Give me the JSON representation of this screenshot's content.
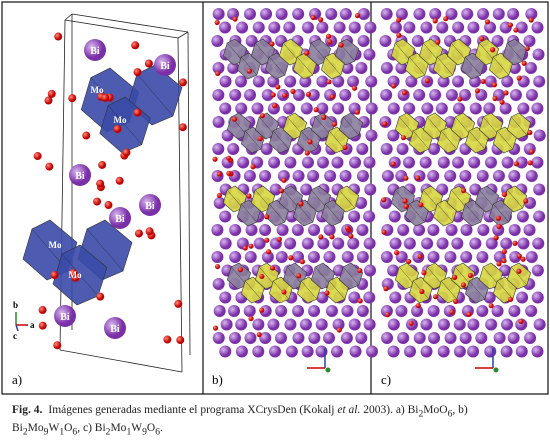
{
  "panels": [
    {
      "label": "a)",
      "atom_labels": [
        "Bi",
        "Bi",
        "Bi",
        "Bi",
        "Bi",
        "Bi",
        "Bi",
        "Mo",
        "Mo",
        "Mo",
        "Mo"
      ],
      "axes": [
        "b",
        "a",
        "c"
      ]
    },
    {
      "label": "b)"
    },
    {
      "label": "c)"
    }
  ],
  "caption": {
    "parts": [
      "Fig. 4.",
      "Imágenes generadas mediante el programa XCrysDen (Kokalj ",
      "et al.",
      " 2003). a) Bi",
      "2",
      "MoO",
      "6",
      ", b)",
      "Bi",
      "2",
      "Mo",
      "9",
      "W",
      "1",
      "O",
      "6",
      ", c) Bi",
      "2",
      "Mo",
      "1",
      "W",
      "9",
      "O",
      "6",
      "."
    ]
  }
}
